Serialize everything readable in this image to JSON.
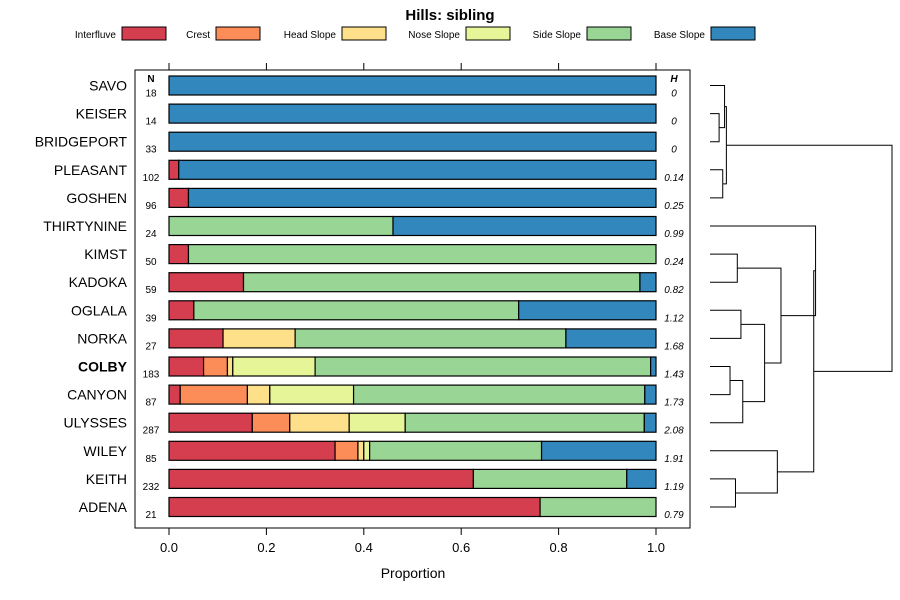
{
  "chart_data": {
    "type": "bar",
    "orientation": "horizontal",
    "stacked": true,
    "title": "Hills: sibling",
    "xlabel": "Proportion",
    "xlim": [
      0,
      1
    ],
    "xticks": [
      "0.0",
      "0.2",
      "0.4",
      "0.6",
      "0.8",
      "1.0"
    ],
    "n_header": "N",
    "h_header": "H",
    "legend": [
      {
        "name": "Interfluve",
        "color": "#D53E4F"
      },
      {
        "name": "Crest",
        "color": "#FC8D59"
      },
      {
        "name": "Head Slope",
        "color": "#FEE08B"
      },
      {
        "name": "Nose Slope",
        "color": "#E6F598"
      },
      {
        "name": "Side Slope",
        "color": "#99D594"
      },
      {
        "name": "Base Slope",
        "color": "#3288BD"
      }
    ],
    "rows": [
      {
        "name": "SAVO",
        "n": "18",
        "h": "0",
        "values": [
          0,
          0,
          0,
          0,
          0,
          1.0
        ]
      },
      {
        "name": "KEISER",
        "n": "14",
        "h": "0",
        "values": [
          0,
          0,
          0,
          0,
          0,
          1.0
        ]
      },
      {
        "name": "BRIDGEPORT",
        "n": "33",
        "h": "0",
        "values": [
          0,
          0,
          0,
          0,
          0,
          1.0
        ]
      },
      {
        "name": "PLEASANT",
        "n": "102",
        "h": "0.14",
        "values": [
          0.02,
          0,
          0,
          0,
          0,
          0.98
        ]
      },
      {
        "name": "GOSHEN",
        "n": "96",
        "h": "0.25",
        "values": [
          0.04,
          0,
          0,
          0,
          0,
          0.96
        ]
      },
      {
        "name": "THIRTYNINE",
        "n": "24",
        "h": "0.99",
        "values": [
          0,
          0,
          0,
          0,
          0.46,
          0.54
        ]
      },
      {
        "name": "KIMST",
        "n": "50",
        "h": "0.24",
        "values": [
          0.04,
          0,
          0,
          0,
          0.96,
          0
        ]
      },
      {
        "name": "KADOKA",
        "n": "59",
        "h": "0.82",
        "values": [
          0.153,
          0,
          0,
          0,
          0.814,
          0.033
        ]
      },
      {
        "name": "OGLALA",
        "n": "39",
        "h": "1.12",
        "values": [
          0.051,
          0,
          0,
          0,
          0.667,
          0.282
        ]
      },
      {
        "name": "NORKA",
        "n": "27",
        "h": "1.68",
        "values": [
          0.111,
          0,
          0.148,
          0,
          0.556,
          0.185
        ]
      },
      {
        "name": "COLBY",
        "n": "183",
        "h": "1.43",
        "bold": true,
        "values": [
          0.071,
          0.049,
          0.011,
          0.169,
          0.689,
          0.011
        ]
      },
      {
        "name": "CANYON",
        "n": "87",
        "h": "1.73",
        "values": [
          0.023,
          0.138,
          0.046,
          0.172,
          0.598,
          0.023
        ]
      },
      {
        "name": "ULYSSES",
        "n": "287",
        "h": "2.08",
        "values": [
          0.171,
          0.077,
          0.122,
          0.115,
          0.491,
          0.024
        ]
      },
      {
        "name": "WILEY",
        "n": "85",
        "h": "1.91",
        "values": [
          0.341,
          0.047,
          0.012,
          0.012,
          0.353,
          0.235
        ]
      },
      {
        "name": "KEITH",
        "n": "232",
        "h": "1.19",
        "values": [
          0.625,
          0,
          0,
          0,
          0.315,
          0.06
        ]
      },
      {
        "name": "ADENA",
        "n": "21",
        "h": "0.79",
        "values": [
          0.762,
          0,
          0,
          0,
          0.238,
          0
        ]
      }
    ],
    "dendrogram_merges": [
      {
        "a": [
          1
        ],
        "b": [
          2
        ],
        "height": 0.05
      },
      {
        "a": [
          0
        ],
        "b": [
          1,
          2
        ],
        "height": 0.08
      },
      {
        "a": [
          3
        ],
        "b": [
          4
        ],
        "height": 0.07
      },
      {
        "a": [
          0,
          1,
          2
        ],
        "b": [
          3,
          4
        ],
        "height": 0.09
      },
      {
        "a": [
          6
        ],
        "b": [
          7
        ],
        "height": 0.15
      },
      {
        "a": [
          8
        ],
        "b": [
          9
        ],
        "height": 0.17
      },
      {
        "a": [
          10
        ],
        "b": [
          11
        ],
        "height": 0.11
      },
      {
        "a": [
          10,
          11
        ],
        "b": [
          12
        ],
        "height": 0.18
      },
      {
        "a": [
          8,
          9
        ],
        "b": [
          10,
          11,
          12
        ],
        "height": 0.3
      },
      {
        "a": [
          6,
          7
        ],
        "b": [
          8,
          9,
          10,
          11,
          12
        ],
        "height": 0.39
      },
      {
        "a": [
          5
        ],
        "b": [
          6,
          7,
          8,
          9,
          10,
          11,
          12
        ],
        "height": 0.58
      },
      {
        "a": [
          14
        ],
        "b": [
          15
        ],
        "height": 0.14
      },
      {
        "a": [
          13
        ],
        "b": [
          14,
          15
        ],
        "height": 0.37
      },
      {
        "a": [
          5,
          6,
          7,
          8,
          9,
          10,
          11,
          12
        ],
        "b": [
          13,
          14,
          15
        ],
        "height": 0.57
      },
      {
        "a": [
          0,
          1,
          2,
          3,
          4
        ],
        "b": [
          5,
          6,
          7,
          8,
          9,
          10,
          11,
          12,
          13,
          14,
          15
        ],
        "height": 1.0
      }
    ]
  }
}
